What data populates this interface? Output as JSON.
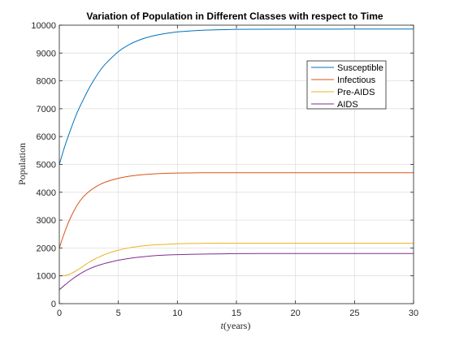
{
  "chart_data": {
    "type": "line",
    "title": "Variation of Population in Different Classes with respect to Time",
    "xlabel_var": "t",
    "xlabel_unit": "(years)",
    "ylabel": "Population",
    "xlim": [
      0,
      30
    ],
    "ylim": [
      0,
      10000
    ],
    "xticks": [
      0,
      5,
      10,
      15,
      20,
      25,
      30
    ],
    "yticks": [
      0,
      1000,
      2000,
      3000,
      4000,
      5000,
      6000,
      7000,
      8000,
      9000,
      10000
    ],
    "grid": true,
    "legend_position": "top-right",
    "x": [
      0,
      0.5,
      1,
      1.5,
      2,
      2.5,
      3,
      3.5,
      4,
      5,
      6,
      7,
      8,
      9,
      10,
      11,
      12,
      13,
      14,
      15,
      17,
      20,
      25,
      30
    ],
    "series": [
      {
        "name": "Susceptible",
        "color": "#0072BD",
        "values": [
          5000,
          5700,
          6300,
          6850,
          7300,
          7720,
          8080,
          8400,
          8650,
          9050,
          9320,
          9500,
          9620,
          9700,
          9760,
          9790,
          9815,
          9830,
          9840,
          9850,
          9855,
          9858,
          9860,
          9860
        ]
      },
      {
        "name": "Infectious",
        "color": "#D95319",
        "values": [
          2000,
          2620,
          3130,
          3530,
          3820,
          4020,
          4170,
          4290,
          4380,
          4500,
          4580,
          4630,
          4660,
          4680,
          4690,
          4695,
          4700,
          4700,
          4700,
          4700,
          4700,
          4700,
          4700,
          4700
        ]
      },
      {
        "name": "Pre-AIDS",
        "color": "#EDB120",
        "values": [
          1000,
          1010,
          1080,
          1200,
          1340,
          1480,
          1600,
          1700,
          1790,
          1920,
          2010,
          2070,
          2110,
          2130,
          2150,
          2160,
          2165,
          2170,
          2170,
          2170,
          2170,
          2170,
          2170,
          2170
        ]
      },
      {
        "name": "AIDS",
        "color": "#7E2F8E",
        "values": [
          500,
          680,
          850,
          1000,
          1130,
          1240,
          1330,
          1400,
          1460,
          1560,
          1630,
          1680,
          1720,
          1745,
          1760,
          1770,
          1780,
          1785,
          1790,
          1795,
          1800,
          1800,
          1800,
          1800
        ]
      }
    ]
  }
}
